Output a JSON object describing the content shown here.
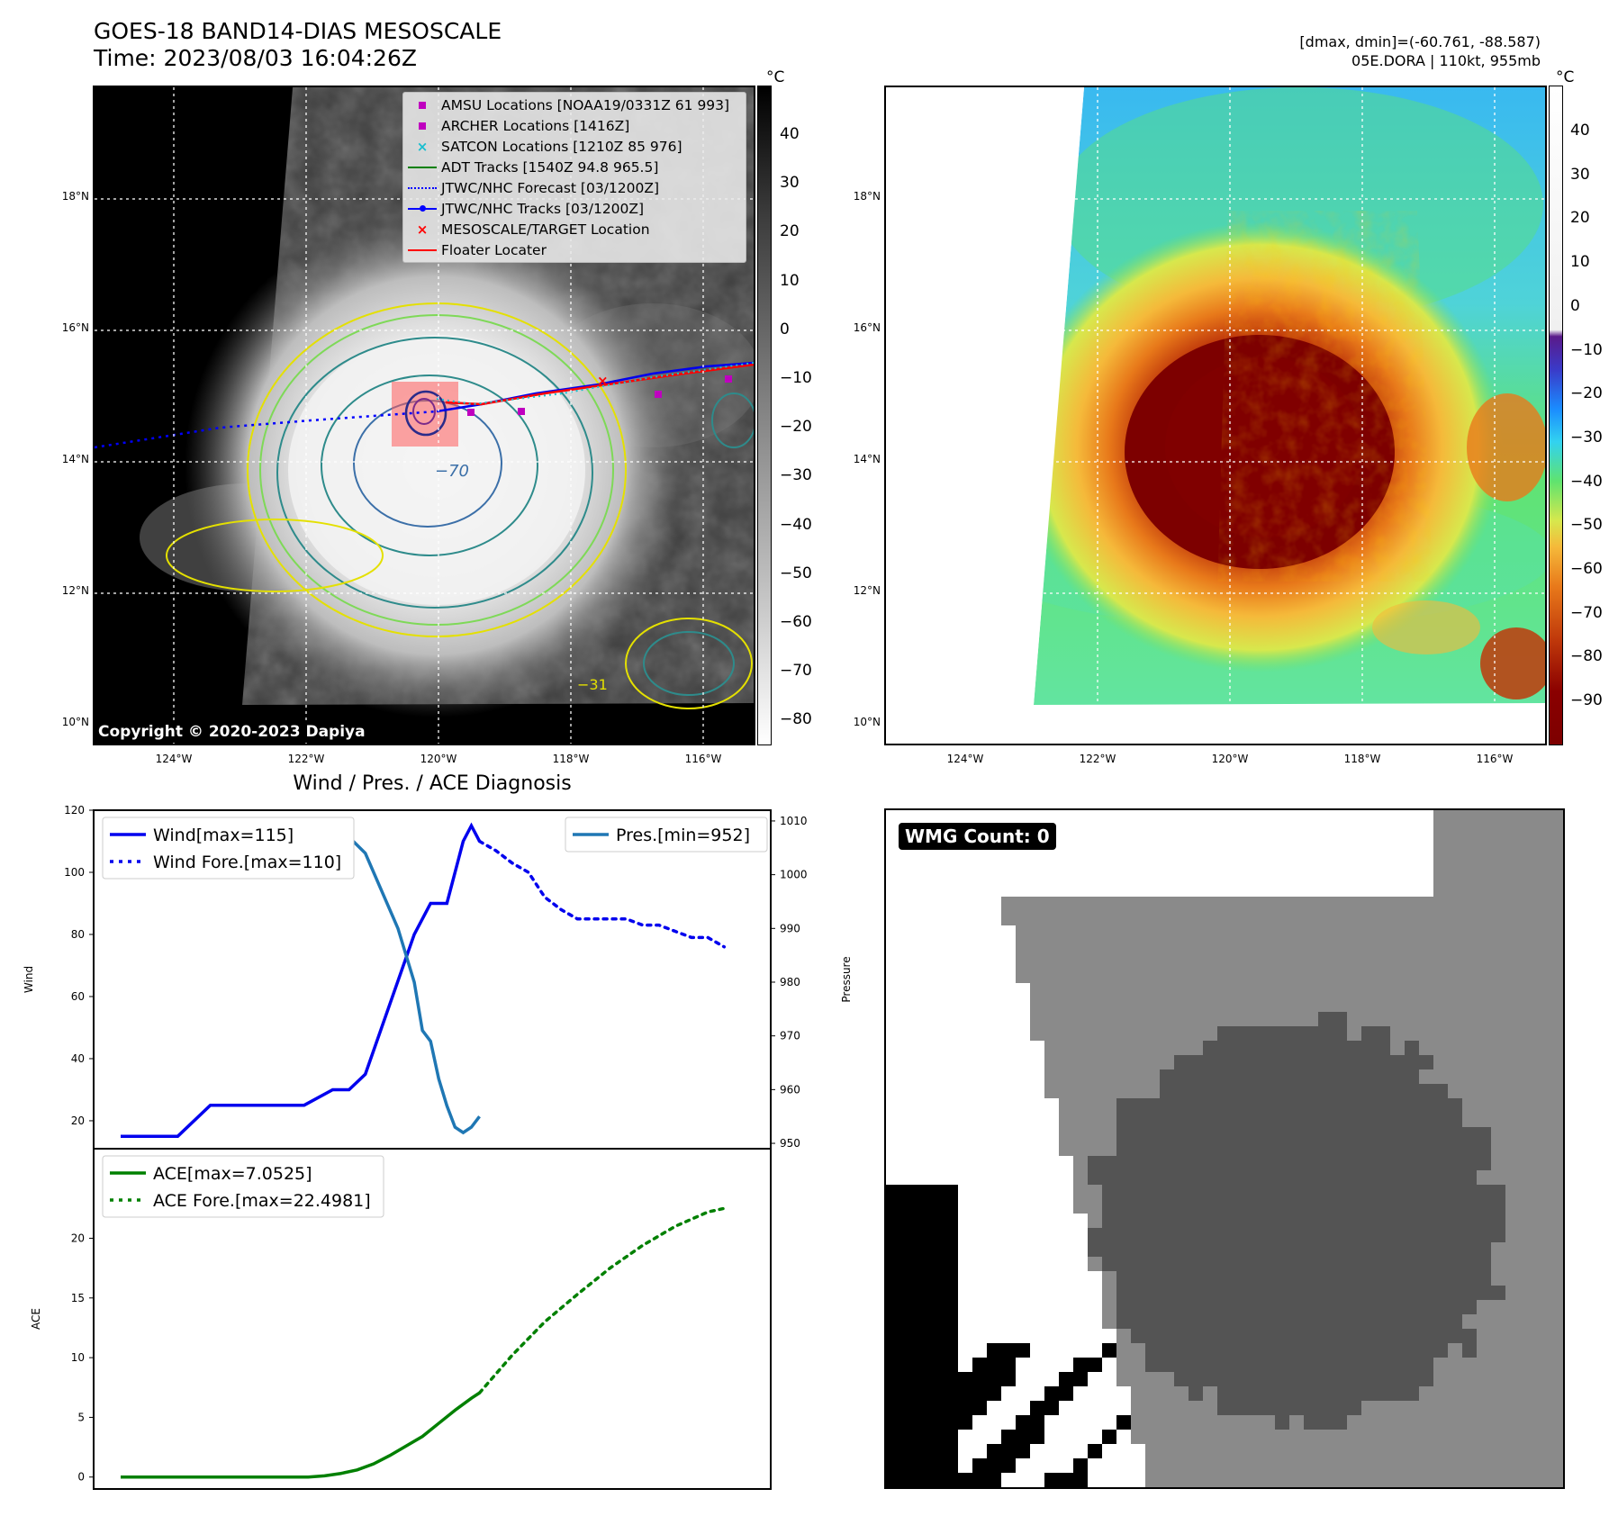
{
  "header": {
    "title_line1": "GOES-18 BAND14-DIAS MESOSCALE",
    "title_line2": "Time: 2023/08/03 16:04:26Z",
    "right_line1": "[dmax, dmin]=(-60.761, -88.587)",
    "right_line2": "05E.DORA | 110kt, 955mb"
  },
  "colorbar_unit": "°C",
  "gray_colorbar_ticks": [
    "40",
    "30",
    "20",
    "10",
    "0",
    "−10",
    "−20",
    "−30",
    "−40",
    "−50",
    "−60",
    "−70",
    "−80"
  ],
  "color_colorbar_ticks": [
    "40",
    "30",
    "20",
    "10",
    "0",
    "−10",
    "−20",
    "−30",
    "−40",
    "−50",
    "−60",
    "−70",
    "−80",
    "−90"
  ],
  "lat_labels": [
    "18°N",
    "16°N",
    "14°N",
    "12°N",
    "10°N"
  ],
  "lon_labels": [
    "124°W",
    "122°W",
    "120°W",
    "118°W",
    "116°W"
  ],
  "legend": [
    {
      "label": "AMSU Locations [NOAA19/0331Z 61 993]",
      "symbol": "square",
      "color": "#bf00bf"
    },
    {
      "label": "ARCHER Locations [1416Z]",
      "symbol": "square",
      "color": "#bf00bf"
    },
    {
      "label": "SATCON Locations [1210Z 85 976]",
      "symbol": "x",
      "color": "#17becf"
    },
    {
      "label": "ADT Tracks [1540Z 94.8 965.5]",
      "symbol": "line",
      "color": "#008000"
    },
    {
      "label": "JTWC/NHC Forecast [03/1200Z]",
      "symbol": "dotted",
      "color": "#0000ff"
    },
    {
      "label": "JTWC/NHC Tracks [03/1200Z]",
      "symbol": "line-dot",
      "color": "#0000ff"
    },
    {
      "label": "MESOSCALE/TARGET Location",
      "symbol": "x",
      "color": "#ff0000"
    },
    {
      "label": "Floater Locater",
      "symbol": "line",
      "color": "#ff0000"
    }
  ],
  "contour_label": "−70",
  "contour_label2": "−31",
  "copyright": "Copyright © 2020-2023 Dapiya",
  "wmg_label": "WMG Count: 0",
  "diagnosis_title": "Wind / Pres. / ACE Diagnosis",
  "chart_data": [
    {
      "type": "line",
      "title": "Wind / Pres. / ACE Diagnosis",
      "ylabel": "Wind",
      "y2label": "Pressure",
      "ylim": [
        11,
        120
      ],
      "y2lim": [
        949,
        1012
      ],
      "yticks": [
        20,
        40,
        60,
        80,
        100,
        120
      ],
      "y2ticks": [
        950,
        960,
        970,
        980,
        990,
        1000,
        1010
      ],
      "series": [
        {
          "name": "Wind[max=115]",
          "axis": "left",
          "color": "#0000ee",
          "style": "solid",
          "x": [
            0,
            7,
            14,
            22,
            30,
            45,
            52,
            56,
            60,
            64,
            68,
            72,
            76,
            80,
            84,
            86,
            88
          ],
          "y": [
            15,
            15,
            15,
            25,
            25,
            25,
            30,
            30,
            35,
            50,
            65,
            80,
            90,
            90,
            110,
            115,
            110
          ]
        },
        {
          "name": "Wind Fore.[max=110]",
          "axis": "left",
          "color": "#0000ee",
          "style": "dotted",
          "x": [
            88,
            92,
            96,
            100,
            104,
            108,
            112,
            116,
            120,
            124,
            128,
            132,
            136,
            140,
            144,
            148
          ],
          "y": [
            110,
            107,
            103,
            100,
            92,
            88,
            85,
            85,
            85,
            85,
            83,
            83,
            81,
            79,
            79,
            76
          ]
        },
        {
          "name": "Pres.[min=952]",
          "axis": "right",
          "color": "#1f77b4",
          "style": "solid",
          "x": [
            0,
            10,
            20,
            30,
            40,
            50,
            56,
            60,
            64,
            68,
            72,
            74,
            76,
            78,
            80,
            82,
            84,
            86,
            88
          ],
          "y": [
            1010,
            1010,
            1009,
            1008,
            1008,
            1008,
            1007,
            1004,
            997,
            990,
            980,
            971,
            969,
            962,
            957,
            953,
            952,
            953,
            955
          ]
        }
      ]
    },
    {
      "type": "line",
      "ylabel": "ACE",
      "ylim": [
        -1,
        27.5
      ],
      "yticks": [
        0,
        5,
        10,
        15,
        20
      ],
      "series": [
        {
          "name": "ACE[max=7.0525]",
          "color": "#008000",
          "style": "solid",
          "x": [
            0,
            10,
            20,
            30,
            40,
            46,
            50,
            54,
            58,
            62,
            66,
            70,
            74,
            78,
            82,
            86,
            88
          ],
          "y": [
            0,
            0,
            0,
            0,
            0,
            0,
            0.1,
            0.3,
            0.6,
            1.1,
            1.8,
            2.6,
            3.4,
            4.5,
            5.6,
            6.6,
            7.05
          ]
        },
        {
          "name": "ACE Fore.[max=22.4981]",
          "color": "#008000",
          "style": "dotted",
          "x": [
            88,
            96,
            104,
            112,
            120,
            128,
            136,
            144,
            148
          ],
          "y": [
            7.05,
            10.2,
            13.0,
            15.3,
            17.5,
            19.4,
            21.0,
            22.2,
            22.5
          ]
        }
      ]
    }
  ]
}
